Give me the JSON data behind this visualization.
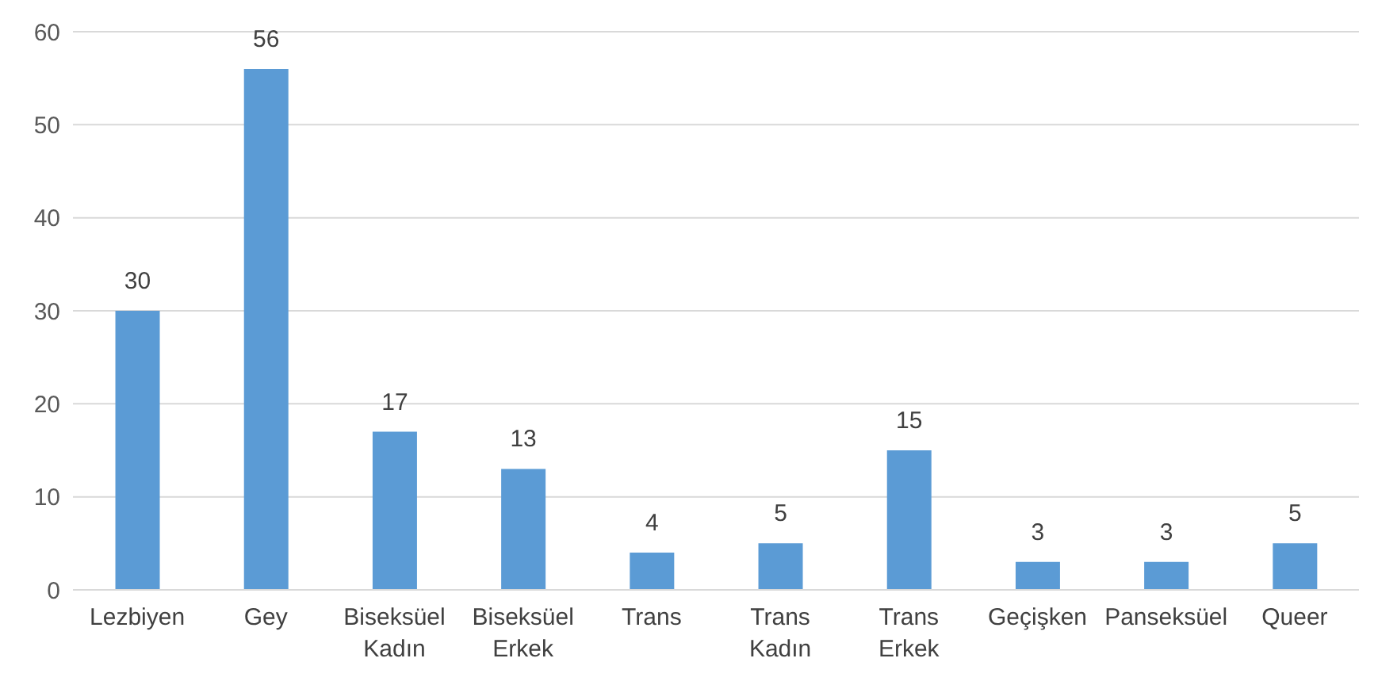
{
  "chart_data": {
    "type": "bar",
    "categories": [
      "Lezbiyen",
      "Gey",
      "Biseksüel Kadın",
      "Biseksüel Erkek",
      "Trans",
      "Trans Kadın",
      "Trans Erkek",
      "Geçişken",
      "Panseksüel",
      "Queer"
    ],
    "values": [
      30,
      56,
      17,
      13,
      4,
      5,
      15,
      3,
      3,
      5
    ],
    "color": "#5b9bd5",
    "ylim": [
      0,
      60
    ],
    "yticks": [
      0,
      10,
      20,
      30,
      40,
      50,
      60
    ],
    "grid": "y",
    "data_labels": true
  }
}
